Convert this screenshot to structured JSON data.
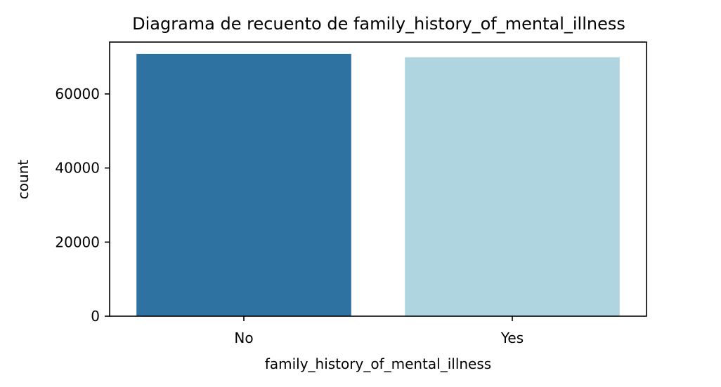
{
  "chart_data": {
    "type": "bar",
    "title": "Diagrama de recuento de family_history_of_mental_illness",
    "xlabel": "family_history_of_mental_illness",
    "ylabel": "count",
    "categories": [
      "No",
      "Yes"
    ],
    "values": [
      70800,
      69900
    ],
    "colors": [
      "#2e72a1",
      "#aed5e0"
    ],
    "ylim": [
      0,
      74000
    ],
    "yticks": [
      0,
      20000,
      40000,
      60000
    ],
    "ytick_labels": [
      "0",
      "20000",
      "40000",
      "60000"
    ],
    "grid": false,
    "legend": "none"
  }
}
